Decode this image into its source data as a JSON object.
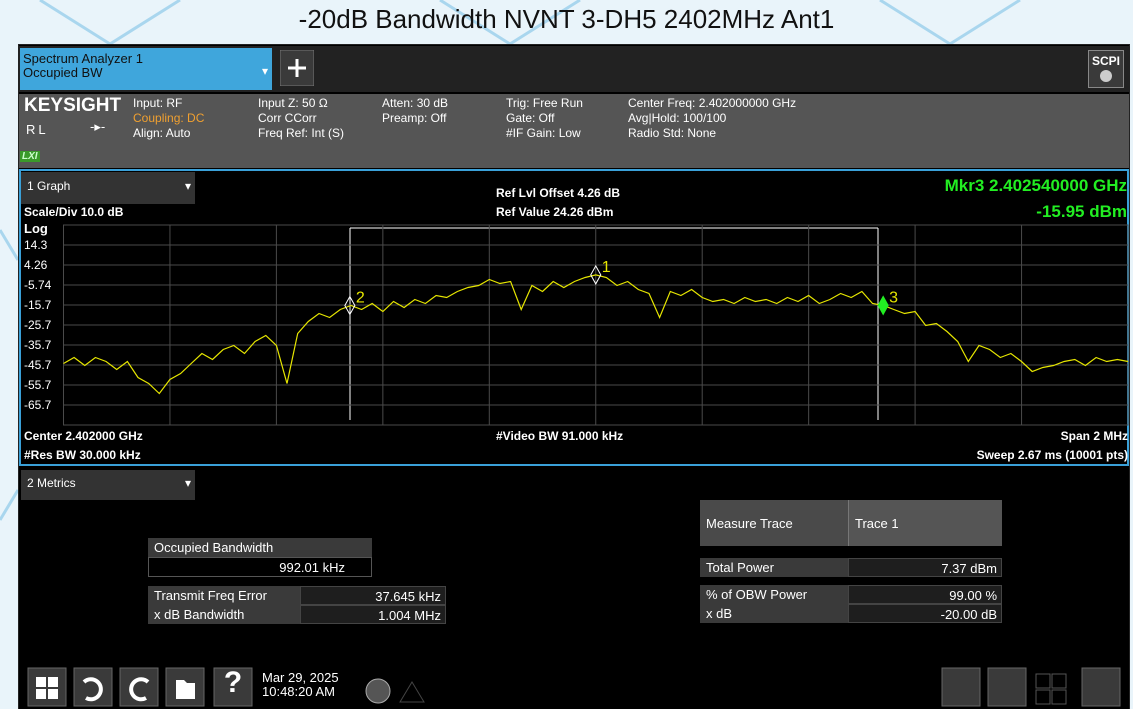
{
  "title": "-20dB Bandwidth NVNT 3-DH5 2402MHz Ant1",
  "tab": {
    "line1": "Spectrum Analyzer 1",
    "line2": "Occupied BW"
  },
  "scpi": "SCPI",
  "info": {
    "brand": "KEYSIGHT",
    "rl": "RL",
    "lxi": "LXI",
    "columns": [
      [
        "Input: RF",
        "Coupling: DC",
        "Align: Auto"
      ],
      [
        "Input Z: 50 Ω",
        "Corr CCorr",
        "Freq Ref: Int (S)"
      ],
      [
        "Atten: 30 dB",
        "Preamp: Off"
      ],
      [
        "Trig: Free Run",
        "Gate: Off",
        "#IF Gain: Low"
      ],
      [
        "Center Freq: 2.402000000 GHz",
        "Avg|Hold: 100/100",
        "Radio Std: None"
      ]
    ]
  },
  "graph": {
    "panel": "1 Graph",
    "scale": "Scale/Div 10.0 dB",
    "log": "Log",
    "ref_offset": "Ref Lvl Offset 4.26 dB",
    "ref_value": "Ref Value 24.26 dBm",
    "marker_freq": "Mkr3  2.402540000 GHz",
    "marker_level": "-15.95 dBm",
    "center": "Center 2.402000 GHz",
    "res_bw": "#Res BW 30.000 kHz",
    "video_bw": "#Video BW 91.000 kHz",
    "span": "Span 2 MHz",
    "sweep": "Sweep 2.67 ms (10001 pts)"
  },
  "chart_data": {
    "type": "line",
    "xlim": [
      2.401,
      2.403
    ],
    "ylim": [
      -75.74,
      24.26
    ],
    "yticks": [
      {
        "value": 14.26,
        "label": "14.3"
      },
      4.26,
      -5.74,
      {
        "value": -15.74,
        "label": "-15.7"
      },
      {
        "value": -25.74,
        "label": "-25.7"
      },
      {
        "value": -35.74,
        "label": "-35.7"
      },
      {
        "value": -45.74,
        "label": "-45.7"
      },
      {
        "value": -55.74,
        "label": "-55.7"
      },
      {
        "value": -65.74,
        "label": "-65.7"
      }
    ],
    "grid": true,
    "color": "#e6e600",
    "values": [
      -45,
      -42,
      -46,
      -42,
      -44,
      -48,
      -44,
      -52,
      -55,
      -60,
      -53,
      -50,
      -45,
      -40,
      -43,
      -38,
      -36,
      -40,
      -34,
      -31,
      -36,
      -55,
      -30,
      -24,
      -20,
      -22,
      -18,
      -16,
      -18,
      -15,
      -19,
      -14,
      -17,
      -13,
      -15,
      -11,
      -12,
      -9,
      -7,
      -6,
      -3,
      -5,
      -4,
      -18,
      -6,
      -9,
      -4,
      -7,
      -4,
      -2,
      -0.7,
      -2,
      -6,
      -4,
      -8,
      -10,
      -22,
      -9,
      -11,
      -8,
      -12,
      -14,
      -13,
      -15,
      -12,
      -14,
      -13,
      -15,
      -12,
      -14,
      -11,
      -15,
      -13,
      -10,
      -12,
      -9,
      -15,
      -15.95,
      -18,
      -20,
      -19,
      -26,
      -25,
      -29,
      -34,
      -44,
      -36,
      -38,
      -42,
      -40,
      -44,
      -49,
      -47,
      -46,
      -44,
      -43,
      -46,
      -42,
      -44,
      -43,
      -44
    ],
    "markers": [
      {
        "label": "1",
        "x": 2.402,
        "value": -0.7
      },
      {
        "label": "2",
        "x": 2.401538,
        "value": -16
      },
      {
        "label": "3",
        "x": 2.40254,
        "value": -15.95
      }
    ]
  },
  "metrics": {
    "panel": "2 Metrics",
    "obw_label": "Occupied Bandwidth",
    "obw_value": "992.01 kHz",
    "left": [
      [
        "Transmit Freq Error",
        "37.645 kHz"
      ],
      [
        "x dB Bandwidth",
        "1.004 MHz"
      ]
    ],
    "right_header": [
      "Measure Trace",
      "Trace 1"
    ],
    "right": [
      [
        "Total Power",
        "7.37 dBm"
      ],
      [
        "% of OBW Power",
        "99.00 %"
      ],
      [
        "x dB",
        "-20.00 dB"
      ]
    ]
  },
  "taskbar": {
    "help": "?",
    "date": "Mar 29, 2025",
    "time": "10:48:20 AM"
  }
}
